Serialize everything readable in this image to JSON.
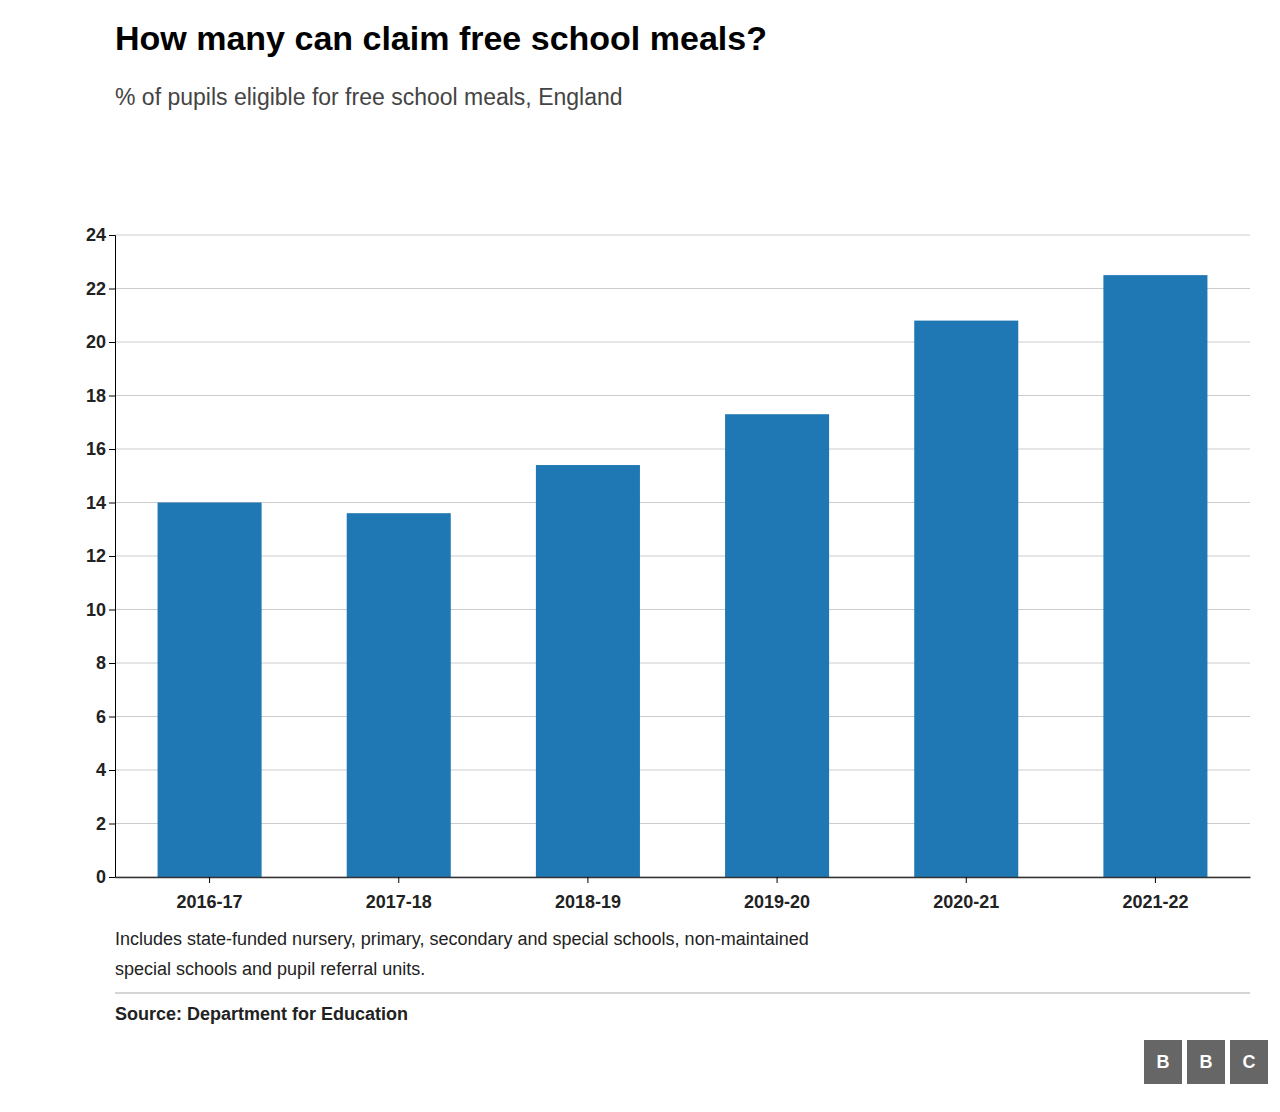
{
  "chart_data": {
    "type": "bar",
    "title": "How many can claim free school meals?",
    "subtitle": "% of pupils eligible for free school meals, England",
    "categories": [
      "2016-17",
      "2017-18",
      "2018-19",
      "2019-20",
      "2020-21",
      "2021-22"
    ],
    "values": [
      14.0,
      13.6,
      15.4,
      17.3,
      20.8,
      22.5
    ],
    "ylim": [
      0,
      24
    ],
    "yticks": [
      0,
      2,
      4,
      6,
      8,
      10,
      12,
      14,
      16,
      18,
      20,
      22,
      24
    ],
    "grid": true,
    "footnote": [
      "Includes state-funded nursery, primary, secondary and special schools, non-maintained",
      "special schools and pupil referral units."
    ],
    "source": "Source: Department for Education",
    "logo_letters": [
      "B",
      "B",
      "C"
    ]
  }
}
